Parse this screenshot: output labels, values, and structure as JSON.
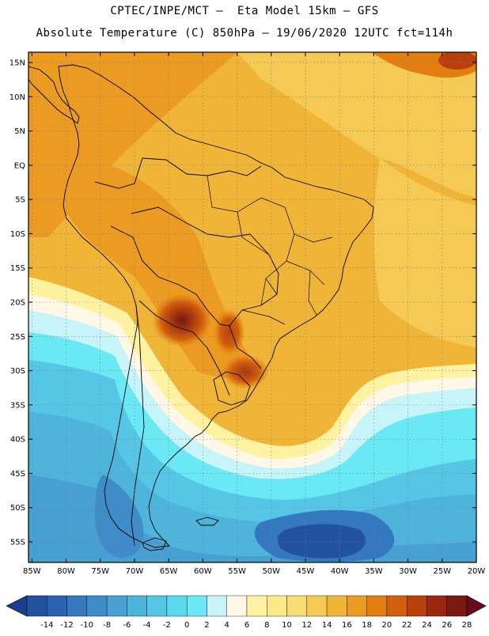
{
  "title": {
    "line1": "CPTEC/INPE/MCT –  Eta Model 15km – GFS",
    "line2": "Absolute Temperature (C) 850hPa – 19/06/2020 12UTC fct=114h"
  },
  "map": {
    "lat_labels": [
      "15N",
      "10N",
      "5N",
      "EQ",
      "5S",
      "10S",
      "15S",
      "20S",
      "25S",
      "30S",
      "35S",
      "40S",
      "45S",
      "50S",
      "55S"
    ],
    "lat_values": [
      15,
      10,
      5,
      0,
      -5,
      -10,
      -15,
      -20,
      -25,
      -30,
      -35,
      -40,
      -45,
      -50,
      -55
    ],
    "lon_labels": [
      "85W",
      "80W",
      "75W",
      "70W",
      "65W",
      "60W",
      "55W",
      "50W",
      "45W",
      "40W",
      "35W",
      "30W",
      "25W",
      "20W"
    ],
    "lon_values": [
      -85,
      -80,
      -75,
      -70,
      -65,
      -60,
      -55,
      -50,
      -45,
      -40,
      -35,
      -30,
      -25,
      -20
    ],
    "extent": {
      "lon_min": -85.5,
      "lon_max": -20,
      "lat_min": -58,
      "lat_max": 16.5
    }
  },
  "colorbar": {
    "labels": [
      "-14",
      "-12",
      "-10",
      "-8",
      "-6",
      "-4",
      "-2",
      "0",
      "2",
      "4",
      "6",
      "8",
      "10",
      "12",
      "14",
      "16",
      "18",
      "20",
      "22",
      "24",
      "26",
      "28"
    ],
    "colors": [
      "#1a3f8c",
      "#2352a0",
      "#2a64b0",
      "#3478bf",
      "#3f8cc8",
      "#48a0d2",
      "#4fb4dc",
      "#55c6e6",
      "#5ad8ee",
      "#6ae8f4",
      "#c6f4f8",
      "#fff8e6",
      "#fff2a0",
      "#fde98a",
      "#f9dc72",
      "#f4ca55",
      "#f0b536",
      "#eb9b22",
      "#e27d10",
      "#d2600c",
      "#b9400c",
      "#9a2810",
      "#7c1a12",
      "#6a0a20"
    ]
  },
  "colors": {
    "frame": "#000000",
    "grid": "#7f7f7f",
    "coast": "#000000"
  }
}
